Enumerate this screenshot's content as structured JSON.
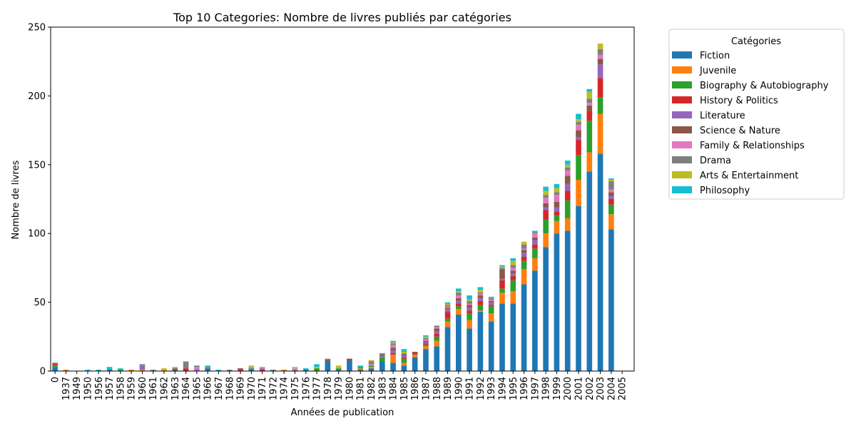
{
  "chart_data": {
    "type": "bar",
    "stacked": true,
    "title": "Top 10 Categories: Nombre de livres publiés par catégories",
    "xlabel": "Années de publication",
    "ylabel": "Nombre de livres",
    "ylim": [
      0,
      250
    ],
    "yticks": [
      0,
      50,
      100,
      150,
      200,
      250
    ],
    "grid": false,
    "legend_title": "Catégories",
    "legend_position": "outside-right",
    "categories": [
      "0",
      "1937",
      "1949",
      "1950",
      "1956",
      "1957",
      "1958",
      "1959",
      "1960",
      "1961",
      "1962",
      "1963",
      "1964",
      "1965",
      "1966",
      "1967",
      "1968",
      "1969",
      "1970",
      "1971",
      "1972",
      "1974",
      "1975",
      "1976",
      "1977",
      "1978",
      "1979",
      "1980",
      "1981",
      "1982",
      "1983",
      "1984",
      "1985",
      "1986",
      "1987",
      "1988",
      "1989",
      "1990",
      "1991",
      "1992",
      "1993",
      "1994",
      "1995",
      "1996",
      "1997",
      "1998",
      "1999",
      "2000",
      "2001",
      "2002",
      "2003",
      "2004",
      "2005"
    ],
    "series": [
      {
        "name": "Fiction",
        "color": "#1f77b4",
        "values": [
          3,
          0,
          0,
          0,
          0,
          1,
          0,
          0,
          0,
          0,
          0,
          1,
          0,
          0,
          2,
          0,
          0,
          0,
          1,
          0,
          0,
          0,
          0,
          1,
          0,
          7,
          1,
          8,
          1,
          2,
          7,
          6,
          4,
          10,
          16,
          18,
          32,
          41,
          31,
          43,
          36,
          49,
          49,
          63,
          73,
          90,
          100,
          102,
          120,
          145,
          158,
          103,
          0
        ]
      },
      {
        "name": "Juvenile",
        "color": "#ff7f0e",
        "values": [
          0,
          1,
          0,
          0,
          0,
          0,
          0,
          1,
          1,
          0,
          1,
          0,
          0,
          0,
          0,
          0,
          0,
          0,
          0,
          0,
          0,
          1,
          0,
          0,
          0,
          0,
          0,
          0,
          1,
          1,
          0,
          6,
          2,
          2,
          2,
          4,
          4,
          4,
          6,
          1,
          6,
          8,
          9,
          11,
          9,
          10,
          9,
          9,
          19,
          14,
          29,
          11,
          0
        ]
      },
      {
        "name": "Biography & Autobiography",
        "color": "#2ca02c",
        "values": [
          1,
          0,
          0,
          0,
          0,
          0,
          1,
          0,
          0,
          0,
          0,
          0,
          0,
          0,
          0,
          0,
          0,
          0,
          1,
          0,
          0,
          0,
          0,
          0,
          2,
          0,
          1,
          0,
          1,
          1,
          3,
          0,
          3,
          0,
          1,
          3,
          2,
          2,
          5,
          4,
          5,
          3,
          8,
          6,
          7,
          10,
          4,
          13,
          18,
          23,
          12,
          7,
          0
        ]
      },
      {
        "name": "History & Politics",
        "color": "#d62728",
        "values": [
          1,
          0,
          0,
          0,
          0,
          0,
          0,
          0,
          0,
          0,
          0,
          0,
          2,
          0,
          0,
          0,
          0,
          1,
          0,
          1,
          0,
          0,
          0,
          0,
          0,
          0,
          0,
          1,
          0,
          0,
          0,
          1,
          1,
          1,
          1,
          2,
          5,
          2,
          2,
          3,
          1,
          6,
          3,
          3,
          3,
          7,
          3,
          7,
          11,
          7,
          14,
          4,
          0
        ]
      },
      {
        "name": "Literature",
        "color": "#9467bd",
        "values": [
          0,
          0,
          0,
          0,
          0,
          0,
          0,
          0,
          3,
          0,
          0,
          0,
          0,
          1,
          0,
          0,
          0,
          0,
          0,
          1,
          0,
          0,
          1,
          0,
          0,
          0,
          0,
          0,
          0,
          0,
          1,
          2,
          1,
          0,
          1,
          2,
          2,
          2,
          2,
          2,
          2,
          1,
          2,
          3,
          3,
          2,
          3,
          5,
          2,
          0,
          10,
          2,
          0
        ]
      },
      {
        "name": "Science & Nature",
        "color": "#8c564b",
        "values": [
          1,
          0,
          0,
          0,
          0,
          0,
          0,
          0,
          0,
          0,
          0,
          1,
          0,
          0,
          0,
          0,
          0,
          1,
          0,
          0,
          0,
          0,
          0,
          0,
          0,
          1,
          0,
          0,
          0,
          0,
          1,
          2,
          1,
          1,
          1,
          2,
          1,
          2,
          2,
          2,
          1,
          7,
          2,
          2,
          2,
          3,
          4,
          6,
          5,
          4,
          4,
          3,
          0
        ]
      },
      {
        "name": "Family & Relationships",
        "color": "#e377c2",
        "values": [
          0,
          0,
          0,
          0,
          0,
          0,
          0,
          0,
          0,
          0,
          0,
          0,
          0,
          2,
          0,
          0,
          0,
          0,
          1,
          1,
          0,
          0,
          1,
          0,
          0,
          0,
          0,
          0,
          0,
          1,
          0,
          2,
          0,
          0,
          1,
          1,
          1,
          2,
          1,
          1,
          1,
          0,
          2,
          1,
          3,
          4,
          5,
          4,
          4,
          2,
          3,
          2,
          0
        ]
      },
      {
        "name": "Drama",
        "color": "#7f7f7f",
        "values": [
          0,
          0,
          0,
          0,
          0,
          0,
          0,
          0,
          1,
          1,
          0,
          0,
          5,
          1,
          1,
          0,
          1,
          0,
          0,
          0,
          1,
          0,
          0,
          0,
          0,
          1,
          0,
          0,
          0,
          2,
          1,
          1,
          1,
          0,
          1,
          1,
          1,
          2,
          2,
          1,
          1,
          1,
          2,
          3,
          1,
          2,
          2,
          2,
          2,
          3,
          4,
          6,
          0
        ]
      },
      {
        "name": "Arts & Entertainment",
        "color": "#bcbd22",
        "values": [
          0,
          0,
          0,
          0,
          0,
          0,
          0,
          0,
          0,
          0,
          1,
          1,
          0,
          0,
          0,
          0,
          0,
          0,
          1,
          0,
          0,
          0,
          1,
          0,
          1,
          0,
          2,
          0,
          0,
          1,
          0,
          1,
          1,
          0,
          1,
          0,
          1,
          1,
          1,
          2,
          0,
          1,
          3,
          2,
          0,
          3,
          3,
          2,
          2,
          5,
          4,
          1,
          0
        ]
      },
      {
        "name": "Philosophy",
        "color": "#17becf",
        "values": [
          0,
          0,
          0,
          1,
          1,
          2,
          1,
          0,
          0,
          0,
          0,
          0,
          0,
          0,
          1,
          1,
          0,
          0,
          0,
          0,
          0,
          0,
          0,
          1,
          2,
          0,
          0,
          0,
          1,
          0,
          0,
          1,
          2,
          0,
          1,
          0,
          1,
          2,
          3,
          2,
          1,
          1,
          2,
          0,
          1,
          3,
          3,
          3,
          4,
          2,
          0,
          1,
          0
        ]
      }
    ]
  }
}
